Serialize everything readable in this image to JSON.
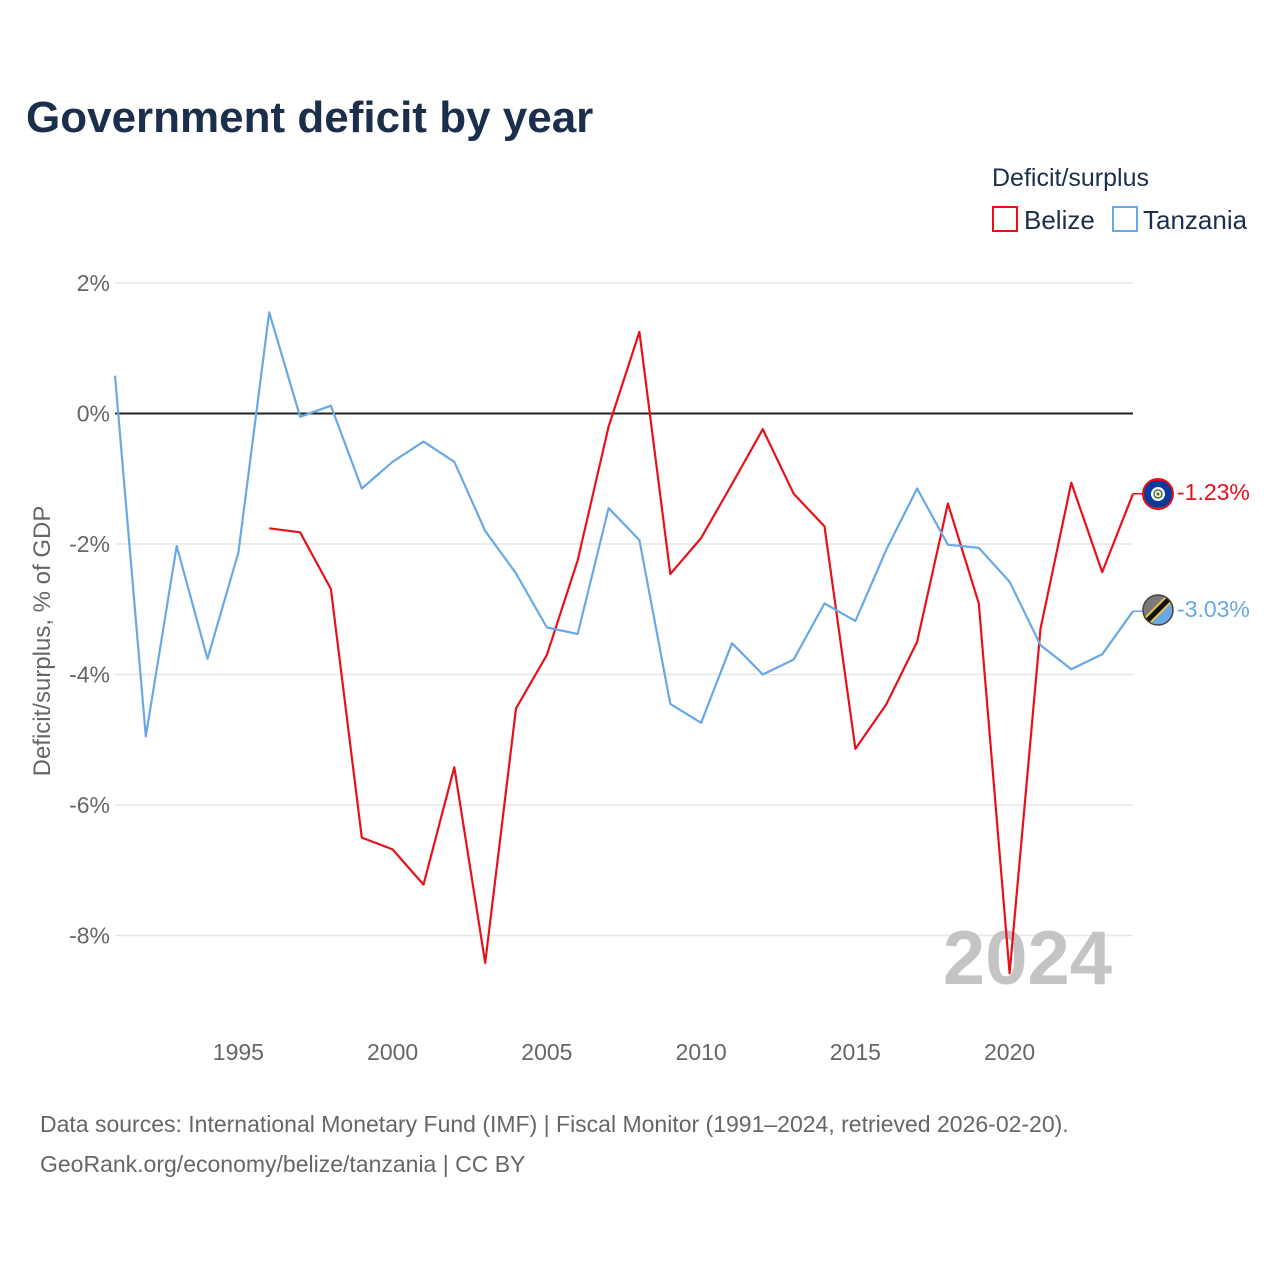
{
  "colors": {
    "belize": "#e8111a",
    "tanzania": "#68a8e4",
    "title": "#1b2e4b",
    "grid": "#e6e6e6",
    "zero_line": "#222222",
    "tick": "#666666",
    "watermark": "#c4c4c4"
  },
  "chart_data": {
    "type": "line",
    "title": "Government deficit by year",
    "xlabel": "",
    "ylabel": "Deficit/surplus, % of GDP",
    "xlim": [
      1991,
      2024
    ],
    "ylim": [
      -9.2,
      2.2
    ],
    "x_ticks": [
      1995,
      2000,
      2005,
      2010,
      2015,
      2020
    ],
    "y_ticks": [
      2,
      0,
      -2,
      -4,
      -6,
      -8
    ],
    "y_tick_labels": [
      "2%",
      "0%",
      "-2%",
      "-4%",
      "-6%",
      "-8%"
    ],
    "legend_title": "Deficit/surplus",
    "legend_position": "top-right",
    "year_label": "2024",
    "series": [
      {
        "name": "Belize",
        "key": "belize",
        "flag_icon": "belize-flag-icon",
        "end_label": "-1.23%",
        "x": [
          1996,
          1997,
          1998,
          1999,
          2000,
          2001,
          2002,
          2003,
          2004,
          2005,
          2006,
          2007,
          2008,
          2009,
          2010,
          2011,
          2012,
          2013,
          2014,
          2015,
          2016,
          2017,
          2018,
          2019,
          2020,
          2021,
          2022,
          2023,
          2024
        ],
        "values": [
          -1.76,
          -1.82,
          -2.69,
          -6.5,
          -6.68,
          -7.22,
          -5.42,
          -8.42,
          -4.52,
          -3.7,
          -2.25,
          -0.2,
          1.25,
          -2.46,
          -1.91,
          -1.08,
          -0.24,
          -1.23,
          -1.73,
          -5.14,
          -4.46,
          -3.5,
          -1.38,
          -2.91,
          -8.58,
          -3.3,
          -1.06,
          -2.43,
          -1.23
        ]
      },
      {
        "name": "Tanzania",
        "key": "tanzania",
        "flag_icon": "tanzania-flag-icon",
        "end_label": "-3.03%",
        "x": [
          1991,
          1992,
          1993,
          1994,
          1995,
          1996,
          1997,
          1998,
          1999,
          2000,
          2001,
          2002,
          2003,
          2004,
          2005,
          2006,
          2007,
          2008,
          2009,
          2010,
          2011,
          2012,
          2013,
          2014,
          2015,
          2016,
          2017,
          2018,
          2019,
          2020,
          2021,
          2022,
          2023,
          2024
        ],
        "values": [
          0.58,
          -4.95,
          -2.03,
          -3.76,
          -2.13,
          1.55,
          -0.05,
          0.12,
          -1.15,
          -0.74,
          -0.43,
          -0.74,
          -1.8,
          -2.45,
          -3.28,
          -3.38,
          -1.45,
          -1.94,
          -4.45,
          -4.74,
          -3.52,
          -4.0,
          -3.77,
          -2.91,
          -3.18,
          -2.09,
          -1.15,
          -2.01,
          -2.06,
          -2.58,
          -3.55,
          -3.92,
          -3.69,
          -3.03
        ]
      }
    ]
  },
  "source": {
    "line1": "Data sources: International Monetary Fund (IMF) | Fiscal Monitor (1991–2024, retrieved 2026-02-20).",
    "line2": "GeoRank.org/economy/belize/tanzania | CC BY"
  }
}
